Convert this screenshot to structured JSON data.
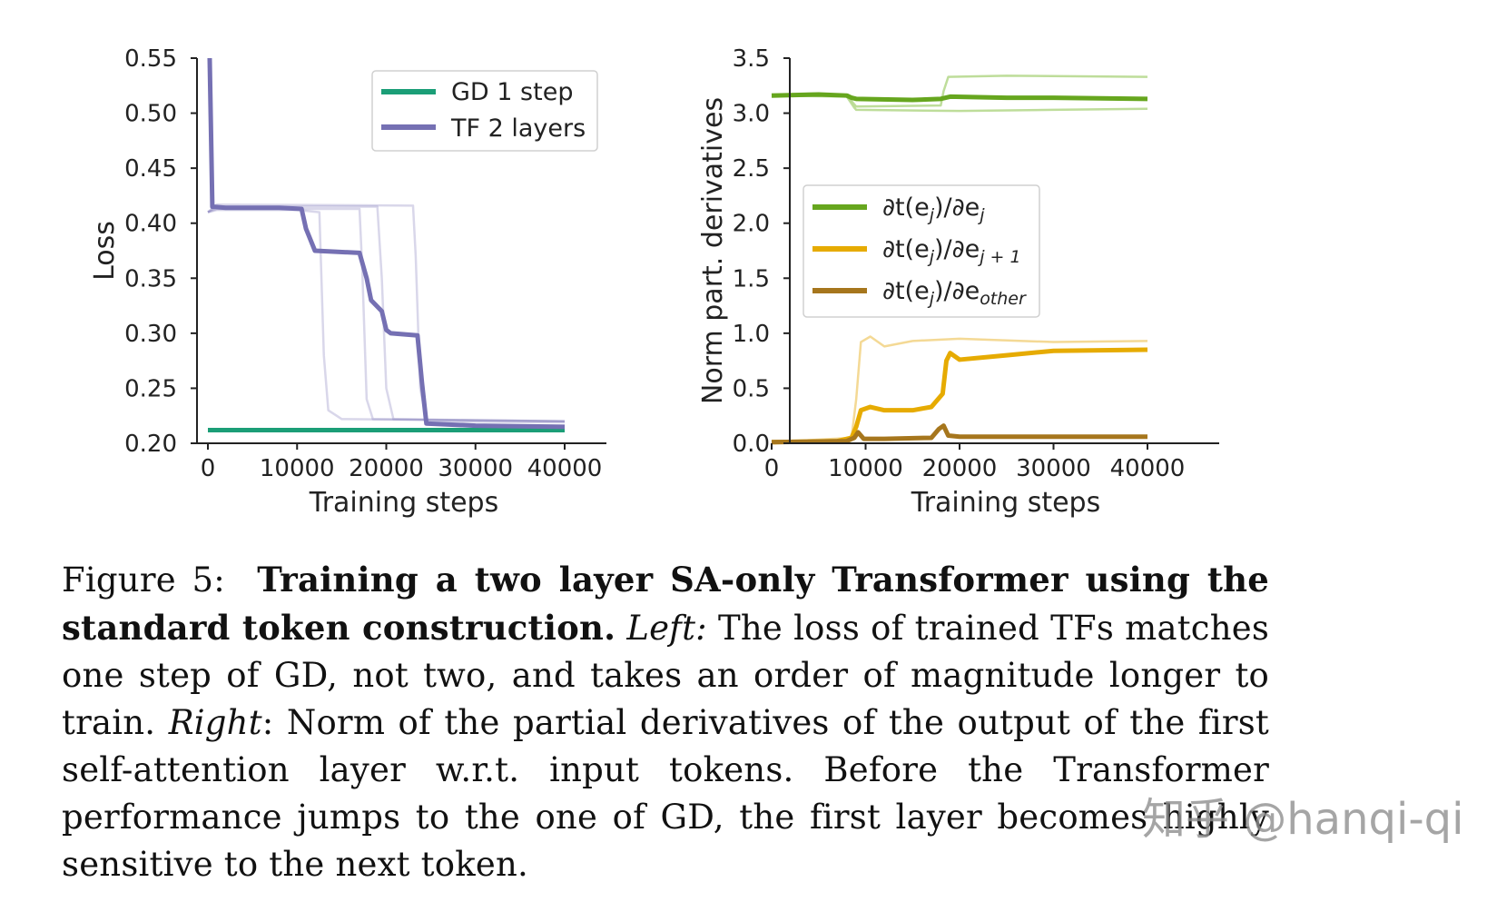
{
  "chart_data": [
    {
      "type": "line",
      "title": "",
      "xlabel": "Training steps",
      "ylabel": "Loss",
      "xlim": [
        0,
        40000
      ],
      "ylim": [
        0.2,
        0.55
      ],
      "xticks": [
        0,
        10000,
        20000,
        30000,
        40000
      ],
      "xtick_labels": [
        "0",
        "10000",
        "20000",
        "30000",
        "40000"
      ],
      "yticks": [
        0.2,
        0.25,
        0.3,
        0.35,
        0.4,
        0.45,
        0.5,
        0.55
      ],
      "ytick_labels": [
        "0.20",
        "0.25",
        "0.30",
        "0.35",
        "0.40",
        "0.45",
        "0.50",
        "0.55"
      ],
      "legend_position": "top-right",
      "colors": {
        "gd": "#1b9e77",
        "tf": "#7570b3"
      },
      "series": [
        {
          "name": "GD 1 step",
          "color": "#1b9e77",
          "x": [
            0,
            40000
          ],
          "y": [
            0.212,
            0.212
          ]
        },
        {
          "name": "TF 2 layers",
          "color": "#7570b3",
          "x": [
            200,
            500,
            2000,
            8000,
            10500,
            11000,
            12000,
            17000,
            17800,
            18300,
            19500,
            20000,
            20500,
            23500,
            24000,
            24500,
            30000,
            40000
          ],
          "y": [
            0.55,
            0.415,
            0.414,
            0.414,
            0.413,
            0.395,
            0.375,
            0.373,
            0.35,
            0.33,
            0.32,
            0.303,
            0.3,
            0.298,
            0.255,
            0.218,
            0.216,
            0.215
          ]
        },
        {
          "x": [
            0,
            1000,
            10000,
            12500,
            13000,
            13500,
            15000,
            40000
          ],
          "y": [
            0.41,
            0.412,
            0.412,
            0.41,
            0.28,
            0.23,
            0.222,
            0.22
          ]
        },
        {
          "x": [
            0,
            1000,
            17000,
            17300,
            17800,
            18500,
            40000
          ],
          "y": [
            0.41,
            0.413,
            0.413,
            0.36,
            0.24,
            0.222,
            0.22
          ]
        },
        {
          "x": [
            0,
            1000,
            19000,
            19500,
            20000,
            20800,
            40000
          ],
          "y": [
            0.41,
            0.415,
            0.415,
            0.35,
            0.25,
            0.222,
            0.22
          ]
        },
        {
          "x": [
            0,
            1000,
            23000,
            23300,
            23800,
            24500,
            40000
          ],
          "y": [
            0.41,
            0.417,
            0.416,
            0.37,
            0.25,
            0.22,
            0.219
          ]
        }
      ]
    },
    {
      "type": "line",
      "title": "",
      "xlabel": "Training steps",
      "ylabel": "Norm part. derivatives",
      "xlim": [
        0,
        40000
      ],
      "ylim": [
        0,
        3.5
      ],
      "xticks": [
        0,
        10000,
        20000,
        30000,
        40000
      ],
      "xtick_labels": [
        "0",
        "10000",
        "20000",
        "30000",
        "40000"
      ],
      "yticks": [
        0,
        0.5,
        1,
        1.5,
        2,
        2.5,
        3,
        3.5
      ],
      "ytick_labels": [
        "0.0",
        "0.5",
        "1.0",
        "1.5",
        "2.0",
        "2.5",
        "3.0",
        "3.5"
      ],
      "legend_position": "center-left",
      "series": [
        {
          "name": "∂t(e_j)/∂e_j",
          "color": "#66a61e",
          "x": [
            0,
            5000,
            8000,
            8500,
            9000,
            15000,
            18000,
            19000,
            25000,
            30000,
            40000
          ],
          "y": [
            3.16,
            3.17,
            3.16,
            3.14,
            3.13,
            3.12,
            3.13,
            3.15,
            3.14,
            3.14,
            3.13
          ]
        },
        {
          "name": "∂t(e_j)/∂e_{j+1}",
          "color": "#e6ab02",
          "x": [
            0,
            7000,
            8500,
            9000,
            9500,
            10500,
            12000,
            15000,
            17000,
            18200,
            18600,
            19000,
            20000,
            25000,
            30000,
            40000
          ],
          "y": [
            0.01,
            0.02,
            0.05,
            0.15,
            0.3,
            0.33,
            0.3,
            0.3,
            0.33,
            0.45,
            0.75,
            0.82,
            0.76,
            0.8,
            0.84,
            0.85
          ]
        },
        {
          "name": "∂t(e_j)/∂e_other",
          "color": "#a6761d",
          "x": [
            0,
            8000,
            8800,
            9200,
            9800,
            12000,
            17000,
            17800,
            18300,
            18800,
            20000,
            30000,
            40000
          ],
          "y": [
            0.01,
            0.02,
            0.05,
            0.1,
            0.04,
            0.04,
            0.05,
            0.13,
            0.16,
            0.07,
            0.06,
            0.06,
            0.06
          ]
        },
        {
          "x": [
            0,
            8500,
            9000,
            9500,
            10500,
            12000,
            15000,
            20000,
            30000,
            40000
          ],
          "y": [
            0.01,
            0.05,
            0.4,
            0.92,
            0.97,
            0.88,
            0.93,
            0.95,
            0.92,
            0.93
          ]
        },
        {
          "x": [
            0,
            8000,
            8800,
            9000,
            18000,
            18300,
            18800,
            25000,
            40000
          ],
          "y": [
            3.17,
            3.16,
            3.08,
            3.06,
            3.07,
            3.2,
            3.33,
            3.34,
            3.33
          ]
        },
        {
          "x": [
            0,
            8000,
            8800,
            9000,
            20000,
            30000,
            40000
          ],
          "y": [
            3.16,
            3.15,
            3.05,
            3.03,
            3.02,
            3.03,
            3.04
          ]
        }
      ]
    }
  ],
  "caption": {
    "label": "Figure 5:",
    "title": "Training a two layer SA-only Transformer using the standard token construction.",
    "left_tag": "Left:",
    "left_text": "The loss of trained TFs matches one step of GD, not two, and takes an order of magnitude longer to train.",
    "right_tag": "Right",
    "right_text": ": Norm of the partial derivatives of the output of the first self-attention layer w.r.t. input tokens. Before the Transformer performance jumps to the one of GD, the first layer becomes highly sensitive to the next token."
  },
  "watermark": "知乎 @hanqi-qi"
}
